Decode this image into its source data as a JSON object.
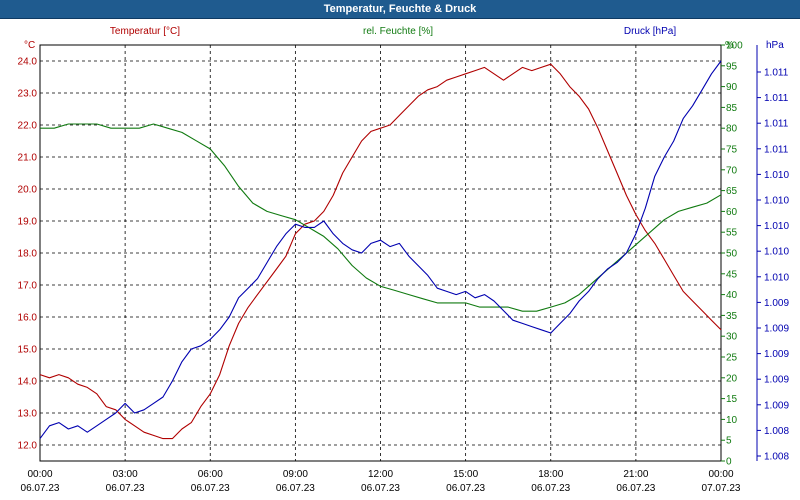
{
  "window": {
    "title": "Temperatur, Feuchte & Druck"
  },
  "colors": {
    "temperature": "#b00000",
    "humidity": "#107a10",
    "pressure": "#0000b0",
    "title_bar": "#1f5b8f",
    "grid": "#000000",
    "text": "#000000"
  },
  "chart_data": {
    "type": "line",
    "title": "Temperatur, Feuchte & Druck",
    "grid": true,
    "legend": "top, above plot, colored labels",
    "x_ticks": [
      {
        "time": "00:00",
        "date": "06.07.23"
      },
      {
        "time": "03:00",
        "date": "06.07.23"
      },
      {
        "time": "06:00",
        "date": "06.07.23"
      },
      {
        "time": "09:00",
        "date": "06.07.23"
      },
      {
        "time": "12:00",
        "date": "06.07.23"
      },
      {
        "time": "15:00",
        "date": "06.07.23"
      },
      {
        "time": "18:00",
        "date": "06.07.23"
      },
      {
        "time": "21:00",
        "date": "06.07.23"
      },
      {
        "time": "00:00",
        "date": "07.07.23"
      }
    ],
    "axes": {
      "temperature": {
        "unit": "°C",
        "label": "Temperatur [°C]",
        "ylim": [
          11.5,
          24.5
        ],
        "ticks": [
          "12.0",
          "13.0",
          "14.0",
          "15.0",
          "16.0",
          "17.0",
          "18.0",
          "19.0",
          "20.0",
          "21.0",
          "22.0",
          "23.0",
          "24.0"
        ]
      },
      "humidity": {
        "unit": "%",
        "label": "rel. Feuchte [%]",
        "ylim": [
          0,
          100
        ],
        "ticks": [
          "0",
          "5",
          "10",
          "15",
          "20",
          "25",
          "30",
          "35",
          "40",
          "45",
          "50",
          "55",
          "60",
          "65",
          "70",
          "75",
          "80",
          "85",
          "90",
          "95",
          "100"
        ]
      },
      "pressure": {
        "unit": "hPa",
        "label": "Druck [hPa]",
        "ticks": [
          "1.008",
          "1.008",
          "1.009",
          "1.009",
          "1.009",
          "1.009",
          "1.009",
          "1.010",
          "1.010",
          "1.010",
          "1.010",
          "1.010",
          "1.011",
          "1.011",
          "1.011",
          "1.011"
        ]
      }
    },
    "series": [
      {
        "name": "Temperatur [°C]",
        "axis": "temperature",
        "points": [
          [
            "00:00",
            14.2
          ],
          [
            "00:20",
            14.1
          ],
          [
            "00:40",
            14.2
          ],
          [
            "01:00",
            14.1
          ],
          [
            "01:20",
            13.9
          ],
          [
            "01:40",
            13.8
          ],
          [
            "02:00",
            13.6
          ],
          [
            "02:20",
            13.2
          ],
          [
            "02:40",
            13.1
          ],
          [
            "03:00",
            12.8
          ],
          [
            "03:20",
            12.6
          ],
          [
            "03:40",
            12.4
          ],
          [
            "04:00",
            12.3
          ],
          [
            "04:20",
            12.2
          ],
          [
            "04:40",
            12.2
          ],
          [
            "05:00",
            12.5
          ],
          [
            "05:20",
            12.7
          ],
          [
            "05:40",
            13.2
          ],
          [
            "06:00",
            13.6
          ],
          [
            "06:20",
            14.2
          ],
          [
            "06:40",
            15.1
          ],
          [
            "07:00",
            15.8
          ],
          [
            "07:20",
            16.3
          ],
          [
            "07:40",
            16.7
          ],
          [
            "08:00",
            17.1
          ],
          [
            "08:20",
            17.5
          ],
          [
            "08:40",
            17.9
          ],
          [
            "09:00",
            18.6
          ],
          [
            "09:20",
            18.9
          ],
          [
            "09:40",
            19.0
          ],
          [
            "10:00",
            19.3
          ],
          [
            "10:20",
            19.8
          ],
          [
            "10:40",
            20.5
          ],
          [
            "11:00",
            21.0
          ],
          [
            "11:20",
            21.5
          ],
          [
            "11:40",
            21.8
          ],
          [
            "12:00",
            21.9
          ],
          [
            "12:20",
            22.0
          ],
          [
            "12:40",
            22.3
          ],
          [
            "13:00",
            22.6
          ],
          [
            "13:20",
            22.9
          ],
          [
            "13:40",
            23.1
          ],
          [
            "14:00",
            23.2
          ],
          [
            "14:20",
            23.4
          ],
          [
            "14:40",
            23.5
          ],
          [
            "15:00",
            23.6
          ],
          [
            "15:20",
            23.7
          ],
          [
            "15:40",
            23.8
          ],
          [
            "16:00",
            23.6
          ],
          [
            "16:20",
            23.4
          ],
          [
            "16:40",
            23.6
          ],
          [
            "17:00",
            23.8
          ],
          [
            "17:20",
            23.7
          ],
          [
            "17:40",
            23.8
          ],
          [
            "18:00",
            23.9
          ],
          [
            "18:20",
            23.6
          ],
          [
            "18:40",
            23.2
          ],
          [
            "19:00",
            22.9
          ],
          [
            "19:20",
            22.5
          ],
          [
            "19:40",
            21.9
          ],
          [
            "20:00",
            21.2
          ],
          [
            "20:20",
            20.5
          ],
          [
            "20:40",
            19.8
          ],
          [
            "21:00",
            19.2
          ],
          [
            "21:20",
            18.7
          ],
          [
            "21:40",
            18.3
          ],
          [
            "22:00",
            17.8
          ],
          [
            "22:20",
            17.3
          ],
          [
            "22:40",
            16.8
          ],
          [
            "23:00",
            16.5
          ],
          [
            "23:20",
            16.2
          ],
          [
            "23:40",
            15.9
          ],
          [
            "24:00",
            15.6
          ]
        ]
      },
      {
        "name": "rel. Feuchte [%]",
        "axis": "humidity",
        "points": [
          [
            "00:00",
            80
          ],
          [
            "00:30",
            80
          ],
          [
            "01:00",
            81
          ],
          [
            "01:30",
            81
          ],
          [
            "02:00",
            81
          ],
          [
            "02:30",
            80
          ],
          [
            "03:00",
            80
          ],
          [
            "03:30",
            80
          ],
          [
            "04:00",
            81
          ],
          [
            "04:30",
            80
          ],
          [
            "05:00",
            79
          ],
          [
            "05:30",
            77
          ],
          [
            "06:00",
            75
          ],
          [
            "06:30",
            71
          ],
          [
            "07:00",
            66
          ],
          [
            "07:30",
            62
          ],
          [
            "08:00",
            60
          ],
          [
            "08:30",
            59
          ],
          [
            "09:00",
            58
          ],
          [
            "09:30",
            56
          ],
          [
            "10:00",
            54
          ],
          [
            "10:30",
            51
          ],
          [
            "11:00",
            47
          ],
          [
            "11:30",
            44
          ],
          [
            "12:00",
            42
          ],
          [
            "12:30",
            41
          ],
          [
            "13:00",
            40
          ],
          [
            "13:30",
            39
          ],
          [
            "14:00",
            38
          ],
          [
            "14:30",
            38
          ],
          [
            "15:00",
            38
          ],
          [
            "15:30",
            37
          ],
          [
            "16:00",
            37
          ],
          [
            "16:30",
            37
          ],
          [
            "17:00",
            36
          ],
          [
            "17:30",
            36
          ],
          [
            "18:00",
            37
          ],
          [
            "18:30",
            38
          ],
          [
            "19:00",
            40
          ],
          [
            "19:30",
            43
          ],
          [
            "20:00",
            46
          ],
          [
            "20:30",
            49
          ],
          [
            "21:00",
            52
          ],
          [
            "21:30",
            55
          ],
          [
            "22:00",
            58
          ],
          [
            "22:30",
            60
          ],
          [
            "23:00",
            61
          ],
          [
            "23:30",
            62
          ],
          [
            "24:00",
            64
          ]
        ]
      },
      {
        "name": "Druck [hPa]",
        "axis": "pressure",
        "points": [
          [
            "00:00",
            12.2
          ],
          [
            "00:20",
            12.6
          ],
          [
            "00:40",
            12.7
          ],
          [
            "01:00",
            12.5
          ],
          [
            "01:20",
            12.6
          ],
          [
            "01:40",
            12.4
          ],
          [
            "02:00",
            12.6
          ],
          [
            "02:20",
            12.8
          ],
          [
            "02:40",
            13.0
          ],
          [
            "03:00",
            13.3
          ],
          [
            "03:20",
            13.0
          ],
          [
            "03:40",
            13.1
          ],
          [
            "04:00",
            13.3
          ],
          [
            "04:20",
            13.5
          ],
          [
            "04:40",
            14.0
          ],
          [
            "05:00",
            14.6
          ],
          [
            "05:20",
            15.0
          ],
          [
            "05:40",
            15.1
          ],
          [
            "06:00",
            15.3
          ],
          [
            "06:20",
            15.6
          ],
          [
            "06:40",
            16.0
          ],
          [
            "07:00",
            16.6
          ],
          [
            "07:20",
            16.9
          ],
          [
            "07:40",
            17.2
          ],
          [
            "08:00",
            17.7
          ],
          [
            "08:20",
            18.2
          ],
          [
            "08:40",
            18.6
          ],
          [
            "09:00",
            18.9
          ],
          [
            "09:20",
            18.8
          ],
          [
            "09:40",
            18.8
          ],
          [
            "10:00",
            19.0
          ],
          [
            "10:20",
            18.6
          ],
          [
            "10:40",
            18.3
          ],
          [
            "11:00",
            18.1
          ],
          [
            "11:20",
            18.0
          ],
          [
            "11:40",
            18.3
          ],
          [
            "12:00",
            18.4
          ],
          [
            "12:20",
            18.2
          ],
          [
            "12:40",
            18.3
          ],
          [
            "13:00",
            17.9
          ],
          [
            "13:20",
            17.6
          ],
          [
            "13:40",
            17.3
          ],
          [
            "14:00",
            16.9
          ],
          [
            "14:20",
            16.8
          ],
          [
            "14:40",
            16.7
          ],
          [
            "15:00",
            16.8
          ],
          [
            "15:20",
            16.6
          ],
          [
            "15:40",
            16.7
          ],
          [
            "16:00",
            16.5
          ],
          [
            "16:20",
            16.2
          ],
          [
            "16:40",
            15.9
          ],
          [
            "17:00",
            15.8
          ],
          [
            "17:20",
            15.7
          ],
          [
            "17:40",
            15.6
          ],
          [
            "18:00",
            15.5
          ],
          [
            "18:20",
            15.8
          ],
          [
            "18:40",
            16.1
          ],
          [
            "19:00",
            16.5
          ],
          [
            "19:20",
            16.8
          ],
          [
            "19:40",
            17.2
          ],
          [
            "20:00",
            17.5
          ],
          [
            "20:20",
            17.7
          ],
          [
            "20:40",
            18.0
          ],
          [
            "21:00",
            18.6
          ],
          [
            "21:20",
            19.4
          ],
          [
            "21:40",
            20.4
          ],
          [
            "22:00",
            21.0
          ],
          [
            "22:20",
            21.5
          ],
          [
            "22:40",
            22.2
          ],
          [
            "23:00",
            22.6
          ],
          [
            "23:20",
            23.1
          ],
          [
            "23:40",
            23.6
          ],
          [
            "24:00",
            24.0
          ]
        ]
      }
    ]
  }
}
